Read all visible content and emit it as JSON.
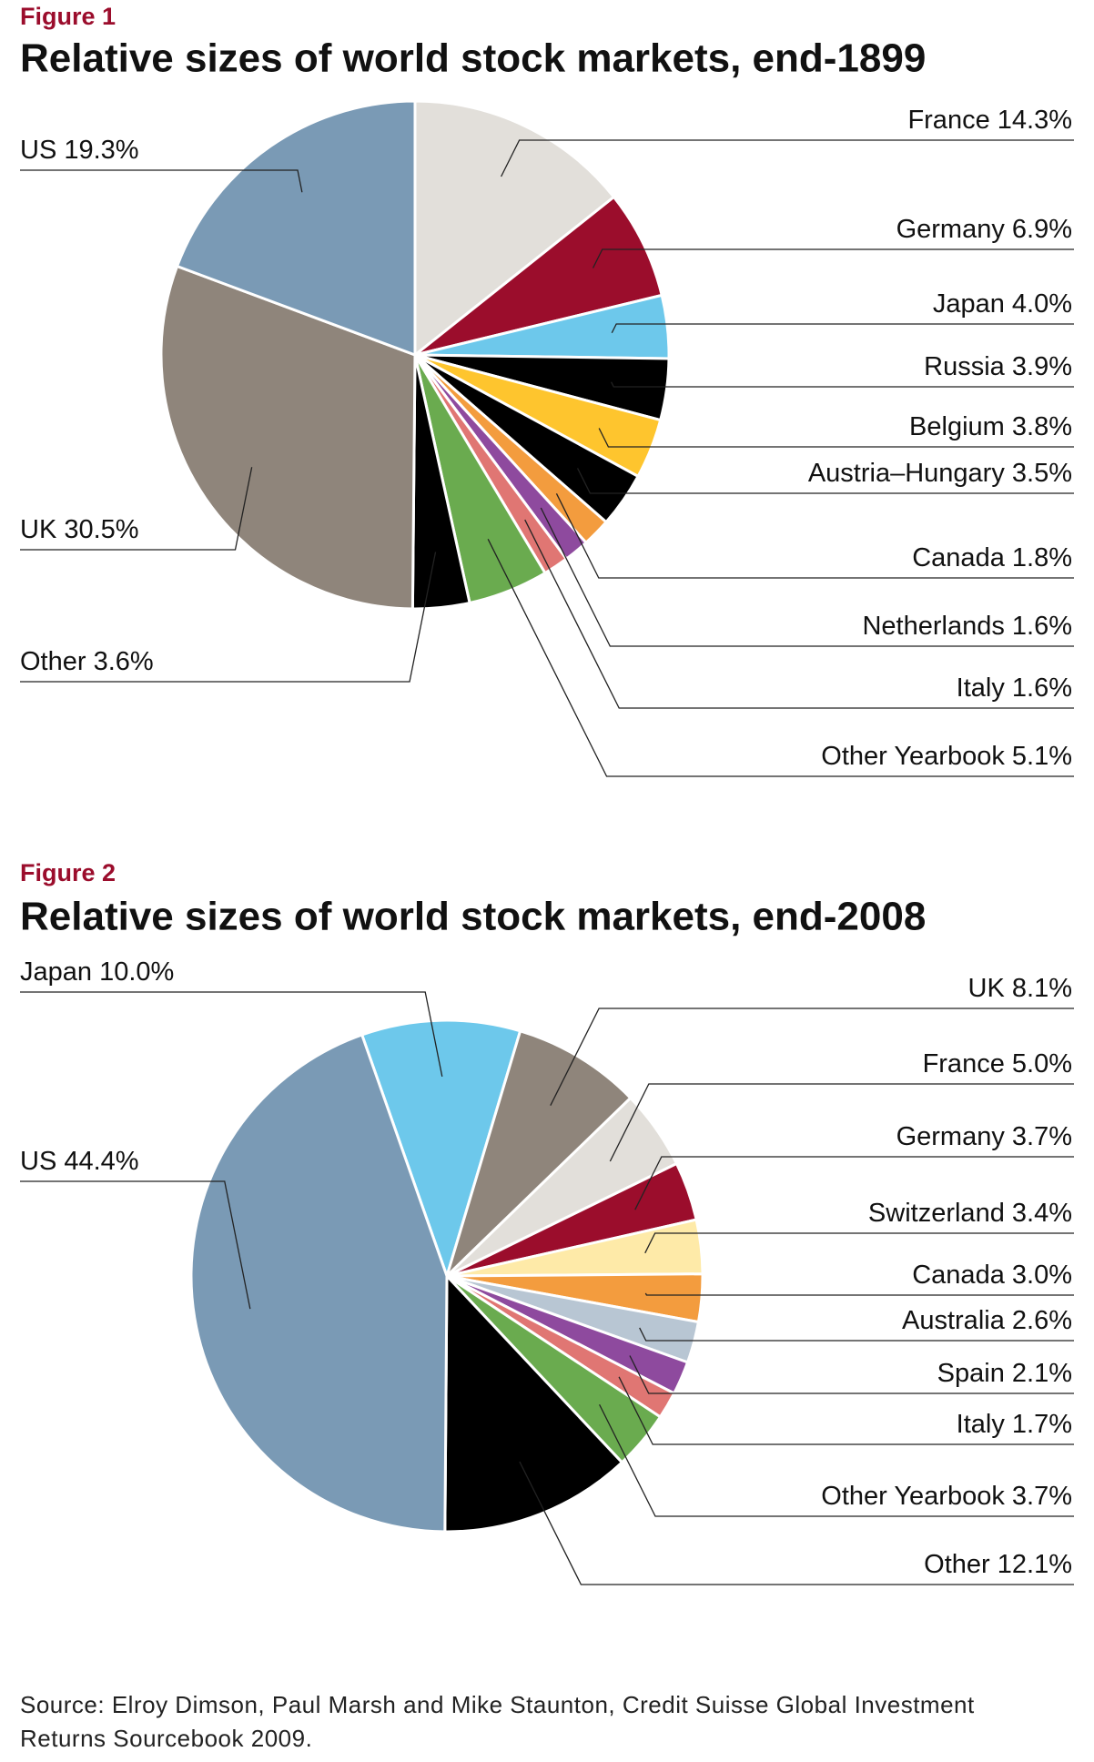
{
  "chart_data": [
    {
      "type": "pie",
      "figure_label": "Figure 1",
      "title": "Relative sizes of world stock markets, end-1899",
      "categories": [
        "France",
        "Germany",
        "Japan",
        "Russia",
        "Belgium",
        "Austria–Hungary",
        "Canada",
        "Netherlands",
        "Italy",
        "Other Yearbook",
        "Other",
        "UK",
        "US"
      ],
      "values": [
        14.3,
        6.9,
        4.0,
        3.9,
        3.8,
        3.5,
        1.8,
        1.6,
        1.6,
        5.1,
        3.6,
        30.5,
        19.3
      ],
      "value_labels": [
        "14.3%",
        "6.9%",
        "4.0%",
        "3.9%",
        "3.8%",
        "3.5%",
        "1.8%",
        "1.6%",
        "1.6%",
        "5.1%",
        "3.6%",
        "30.5%",
        "19.3%"
      ],
      "colors": [
        "#e2dfda",
        "#9b0d2c",
        "#6dc8eb",
        "#000000",
        "#fec52e",
        "#000000",
        "#f39c3e",
        "#8e4a9e",
        "#e07673",
        "#6aab4f",
        "#000000",
        "#8f857b",
        "#7a9ab5"
      ]
    },
    {
      "type": "pie",
      "figure_label": "Figure 2",
      "title": "Relative sizes of world stock markets, end-2008",
      "categories": [
        "Japan",
        "UK",
        "France",
        "Germany",
        "Switzerland",
        "Canada",
        "Australia",
        "Spain",
        "Italy",
        "Other Yearbook",
        "Other",
        "US"
      ],
      "values": [
        10.0,
        8.1,
        5.0,
        3.7,
        3.4,
        3.0,
        2.6,
        2.1,
        1.7,
        3.7,
        12.1,
        44.4
      ],
      "value_labels": [
        "10.0%",
        "8.1%",
        "5.0%",
        "3.7%",
        "3.4%",
        "3.0%",
        "2.6%",
        "2.1%",
        "1.7%",
        "3.7%",
        "12.1%",
        "44.4%"
      ],
      "colors": [
        "#6dc8eb",
        "#8f857b",
        "#e2dfda",
        "#9b0d2c",
        "#feeaa8",
        "#f39c3e",
        "#b8c6d3",
        "#8e4a9e",
        "#e07673",
        "#6aab4f",
        "#000000",
        "#7a9ab5"
      ]
    }
  ],
  "source": "Source: Elroy Dimson, Paul Marsh and Mike Staunton, Credit Suisse Global Investment Returns Sourcebook 2009."
}
